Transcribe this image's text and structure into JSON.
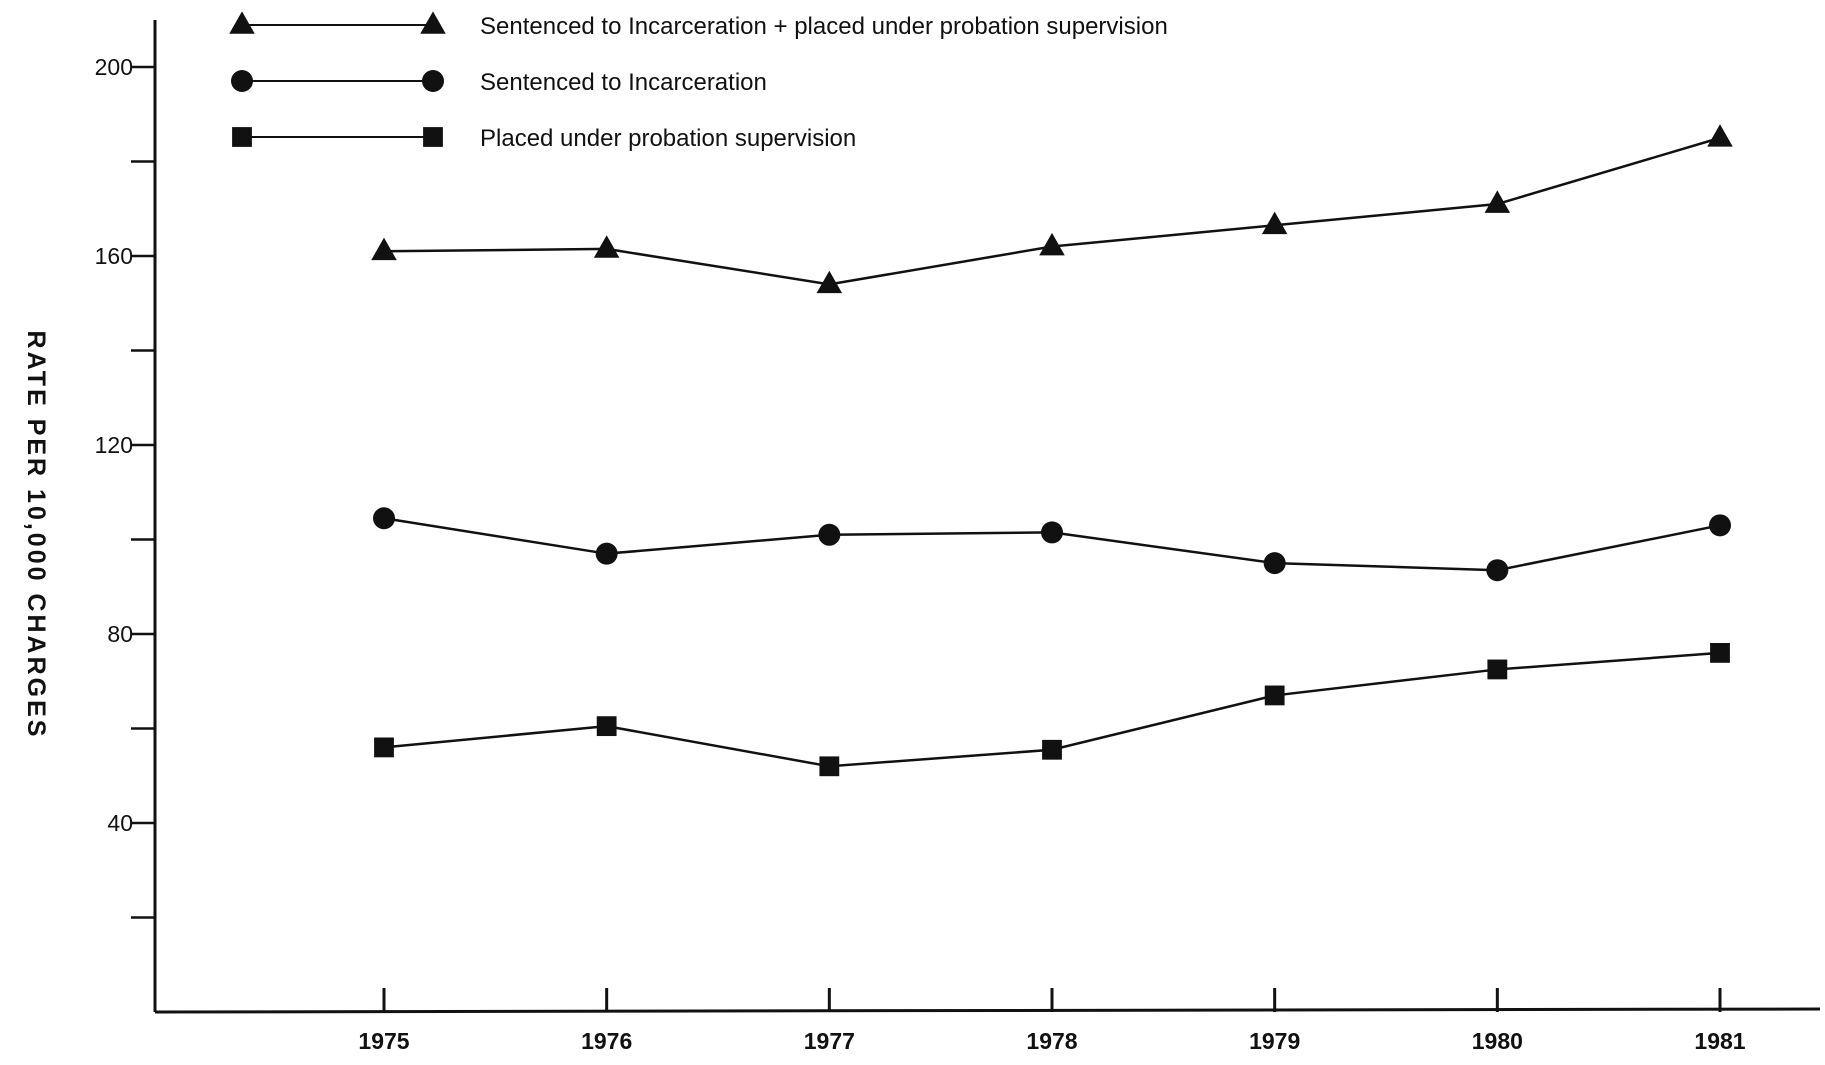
{
  "chart_data": {
    "type": "line",
    "title": "",
    "xlabel": "",
    "ylabel": "RATE PER 10,000 CHARGES",
    "categories": [
      "1975",
      "1976",
      "1977",
      "1978",
      "1979",
      "1980",
      "1981"
    ],
    "ylim": [
      0,
      210
    ],
    "y_tick_labels": [
      "40",
      "80",
      "120",
      "160",
      "200"
    ],
    "y_minor_ticks": [
      20,
      60,
      100,
      140,
      180
    ],
    "grid": false,
    "legend_position": "top-left",
    "series": [
      {
        "name": "Sentenced to Incarceration + placed under probation supervision",
        "marker": "triangle",
        "values": [
          161,
          161.5,
          154,
          162,
          166.5,
          171,
          185
        ]
      },
      {
        "name": "Sentenced to Incarceration",
        "marker": "circle",
        "values": [
          104.5,
          97,
          101,
          101.5,
          95,
          93.5,
          103
        ]
      },
      {
        "name": "Placed under probation supervision",
        "marker": "square",
        "values": [
          56,
          60.5,
          52,
          55.5,
          67,
          72.5,
          76
        ]
      }
    ],
    "colors": {
      "line": "#111111",
      "marker": "#111111",
      "axis": "#111111"
    }
  }
}
